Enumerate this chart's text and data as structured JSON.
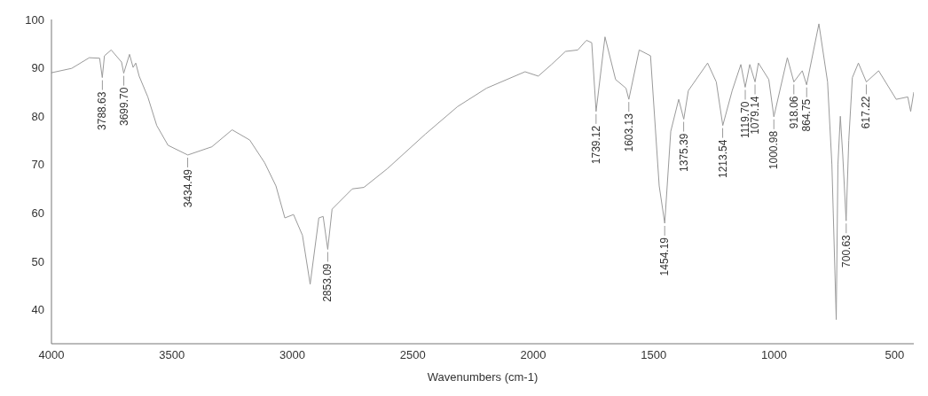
{
  "chart_data": {
    "type": "line",
    "xlabel": "Wavenumbers (cm-1)",
    "xlim": [
      4000,
      420
    ],
    "xticks": [
      4000,
      3500,
      3000,
      2500,
      2000,
      1500,
      1000,
      500
    ],
    "ylim": [
      33,
      100
    ],
    "yticks": [
      40,
      50,
      60,
      70,
      80,
      90,
      100
    ],
    "grid": false,
    "legend": false,
    "marker": "none",
    "line_style": "solid",
    "series": [
      {
        "color": "#9a9a9a",
        "x": [
          4000,
          3916,
          3843,
          3800,
          3789,
          3780,
          3752,
          3709,
          3700,
          3676,
          3661,
          3650,
          3636,
          3600,
          3563,
          3516,
          3434,
          3334,
          3250,
          3177,
          3115,
          3068,
          3031,
          2995,
          2958,
          2926,
          2890,
          2872,
          2853,
          2835,
          2751,
          2703,
          2605,
          2448,
          2314,
          2194,
          2034,
          1979,
          1924,
          1866,
          1815,
          1779,
          1757,
          1739,
          1702,
          1658,
          1615,
          1603,
          1560,
          1513,
          1477,
          1454,
          1429,
          1396,
          1375,
          1356,
          1276,
          1240,
          1213,
          1174,
          1138,
          1120,
          1101,
          1079,
          1065,
          1022,
          1001,
          945,
          918,
          883,
          865,
          814,
          778,
          760,
          742,
          735,
          725,
          715,
          701,
          690,
          675,
          650,
          617,
          566,
          493,
          445,
          433,
          420
        ],
        "values": [
          89,
          89.9,
          92.1,
          92,
          88,
          92.5,
          93.7,
          91.2,
          88.9,
          92.8,
          90.1,
          91,
          88.3,
          84,
          78.1,
          74,
          72,
          73.7,
          77.2,
          75.1,
          70.4,
          65.6,
          59,
          59.7,
          55.4,
          45.3,
          59,
          59.3,
          52.5,
          60.8,
          65,
          65.3,
          69.2,
          76.3,
          82,
          85.8,
          89.2,
          88.3,
          90.7,
          93.4,
          93.7,
          95.7,
          95.2,
          81,
          96.4,
          87.6,
          85.8,
          83.5,
          93.7,
          92.5,
          65.6,
          57.9,
          76.9,
          83.5,
          79.4,
          85.3,
          91,
          87.1,
          78.1,
          85.3,
          90.7,
          86,
          90.7,
          87.1,
          91,
          87.6,
          79.9,
          92.1,
          87.1,
          89.4,
          86.5,
          99.1,
          87.1,
          70,
          38,
          70,
          80,
          72,
          58.4,
          75,
          88,
          91,
          87.1,
          89.4,
          83.5,
          84,
          81,
          85
        ]
      }
    ],
    "annotations": [
      {
        "text": "3788.63",
        "x": 3788.63,
        "y": 88
      },
      {
        "text": "3699.70",
        "x": 3699.7,
        "y": 88.9
      },
      {
        "text": "3434.49",
        "x": 3434.49,
        "y": 72
      },
      {
        "text": "2853.09",
        "x": 2853.09,
        "y": 52.5
      },
      {
        "text": "1739.12",
        "x": 1739.12,
        "y": 81
      },
      {
        "text": "1603.13",
        "x": 1603.13,
        "y": 83.5
      },
      {
        "text": "1454.19",
        "x": 1454.19,
        "y": 57.9
      },
      {
        "text": "1375.39",
        "x": 1375.39,
        "y": 79.4
      },
      {
        "text": "1213.54",
        "x": 1213.54,
        "y": 78.1
      },
      {
        "text": "1119.70",
        "x": 1119.7,
        "y": 86
      },
      {
        "text": "1079.14",
        "x": 1079.14,
        "y": 87.1
      },
      {
        "text": "1000.98",
        "x": 1000.98,
        "y": 79.9
      },
      {
        "text": "918.06",
        "x": 918.06,
        "y": 87.1
      },
      {
        "text": "864.75",
        "x": 864.75,
        "y": 86.5
      },
      {
        "text": "700.63",
        "x": 700.63,
        "y": 58.4
      },
      {
        "text": "617.22",
        "x": 617.22,
        "y": 87.1
      }
    ]
  }
}
